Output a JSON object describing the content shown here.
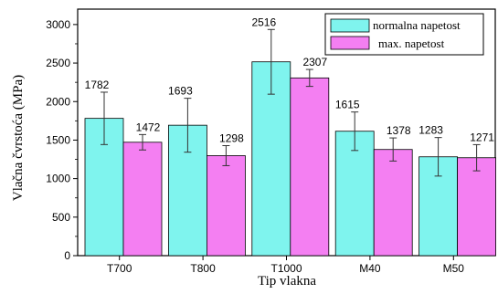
{
  "chart_data": {
    "type": "bar",
    "categories": [
      "T700",
      "T800",
      "T1000",
      "M40",
      "M50"
    ],
    "series": [
      {
        "name": "normalna napetost",
        "color": "#7ff4ee",
        "values": [
          1782,
          1693,
          2516,
          1615,
          1283
        ],
        "errors": [
          340,
          350,
          420,
          250,
          250
        ],
        "value_labels": [
          "1782",
          "1693",
          "2516",
          "1615",
          "1283"
        ]
      },
      {
        "name": "max. napetost",
        "color": "#f47ff2",
        "values": [
          1472,
          1298,
          2307,
          1378,
          1271
        ],
        "errors": [
          100,
          130,
          110,
          150,
          170
        ],
        "value_labels": [
          "1472",
          "1298",
          "2307",
          "1378",
          "1271"
        ]
      }
    ],
    "title": "",
    "xlabel": "Tip vlakna",
    "ylabel": "Vlačna čvrstoća (MPa)",
    "ylim": [
      0,
      3200
    ],
    "yticks": [
      0,
      500,
      1000,
      1500,
      2000,
      2500,
      3000
    ],
    "ytick_labels": [
      "0",
      "500",
      "1000",
      "1500",
      "2000",
      "2500",
      "3000"
    ],
    "grid": false,
    "legend": "top-right"
  }
}
